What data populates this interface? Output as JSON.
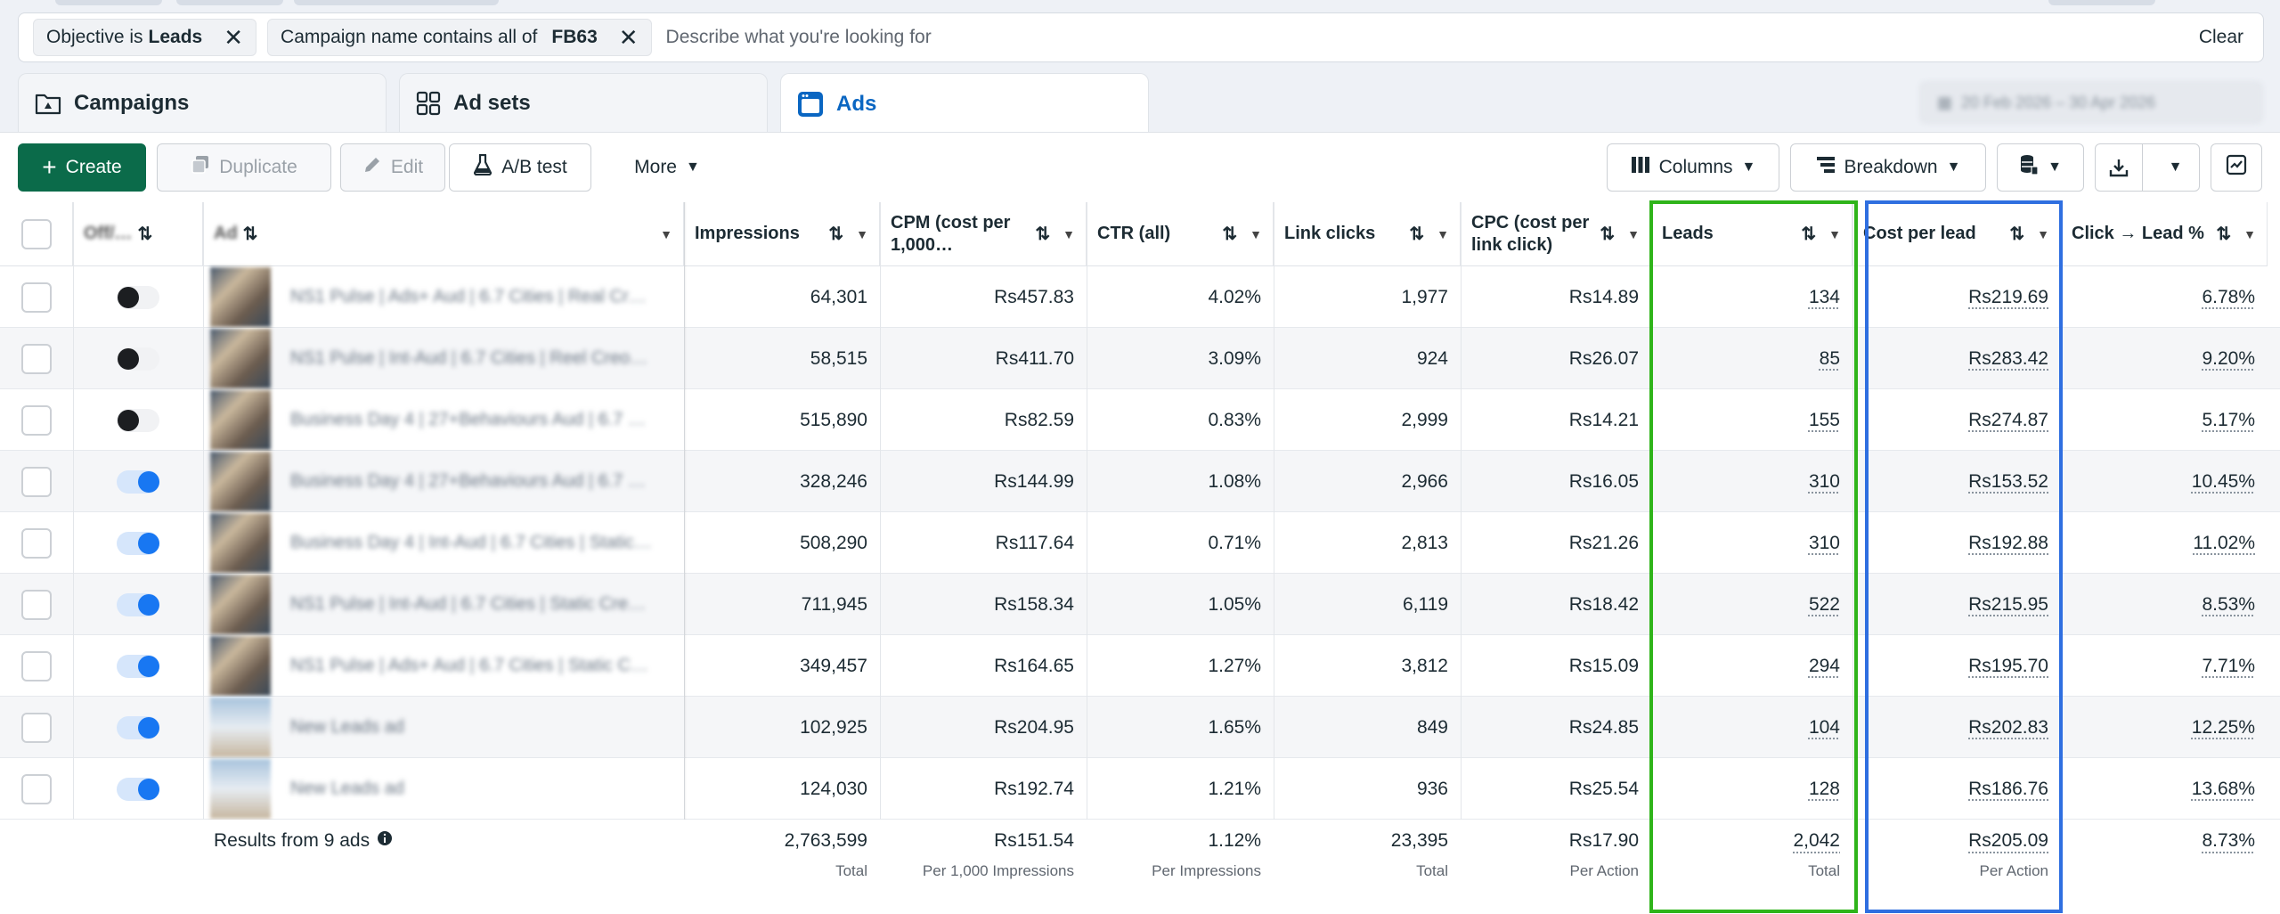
{
  "filters": [
    {
      "prefix": "Objective is",
      "value": "Leads"
    },
    {
      "prefix": "Campaign name contains all of",
      "value": "FB63"
    }
  ],
  "search": {
    "placeholder": "Describe what you're looking for"
  },
  "clear_label": "Clear",
  "tabs": [
    {
      "label": "Campaigns",
      "icon": "campaign-folder-icon"
    },
    {
      "label": "Ad sets",
      "icon": "grid-icon"
    },
    {
      "label": "Ads",
      "icon": "ad-window-icon"
    }
  ],
  "date_range": "20 Feb 2026 – 30 Apr 2026",
  "toolbar": {
    "create": "Create",
    "duplicate": "Duplicate",
    "edit": "Edit",
    "ab_test": "A/B test",
    "more": "More",
    "columns": "Columns",
    "breakdown": "Breakdown"
  },
  "headers": {
    "off_on": "Off/…",
    "ad": "Ad",
    "impressions": "Impressions",
    "cpm": "CPM (cost per 1,000…",
    "ctr": "CTR (all)",
    "link_clicks": "Link clicks",
    "cpc": "CPC (cost per link click)",
    "leads": "Leads",
    "cost_per_lead": "Cost per lead",
    "click_lead": "Click → Lead %"
  },
  "rows": [
    {
      "on": false,
      "thumb": "dark",
      "ad": "NS1 Pulse | Ads+ Aud | 6.7 Cities | Real Cr…",
      "impressions": "64,301",
      "cpm": "Rs457.83",
      "ctr": "4.02%",
      "link_clicks": "1,977",
      "cpc": "Rs14.89",
      "leads": "134",
      "cpl": "Rs219.69",
      "click_lead": "6.78%"
    },
    {
      "on": false,
      "thumb": "dark",
      "ad": "NS1 Pulse | Int-Aud | 6.7 Cities | Reel Creo…",
      "impressions": "58,515",
      "cpm": "Rs411.70",
      "ctr": "3.09%",
      "link_clicks": "924",
      "cpc": "Rs26.07",
      "leads": "85",
      "cpl": "Rs283.42",
      "click_lead": "9.20%"
    },
    {
      "on": false,
      "thumb": "dark",
      "ad": "Business Day 4 | 27+Behaviours Aud | 6.7 …",
      "impressions": "515,890",
      "cpm": "Rs82.59",
      "ctr": "0.83%",
      "link_clicks": "2,999",
      "cpc": "Rs14.21",
      "leads": "155",
      "cpl": "Rs274.87",
      "click_lead": "5.17%"
    },
    {
      "on": true,
      "thumb": "dark",
      "ad": "Business Day 4 | 27+Behaviours Aud | 6.7 …",
      "impressions": "328,246",
      "cpm": "Rs144.99",
      "ctr": "1.08%",
      "link_clicks": "2,966",
      "cpc": "Rs16.05",
      "leads": "310",
      "cpl": "Rs153.52",
      "click_lead": "10.45%"
    },
    {
      "on": true,
      "thumb": "dark",
      "ad": "Business Day 4 | Int-Aud | 6.7 Cities | Static…",
      "impressions": "508,290",
      "cpm": "Rs117.64",
      "ctr": "0.71%",
      "link_clicks": "2,813",
      "cpc": "Rs21.26",
      "leads": "310",
      "cpl": "Rs192.88",
      "click_lead": "11.02%"
    },
    {
      "on": true,
      "thumb": "dark",
      "ad": "NS1 Pulse | Int-Aud | 6.7 Cities | Static Cre…",
      "impressions": "711,945",
      "cpm": "Rs158.34",
      "ctr": "1.05%",
      "link_clicks": "6,119",
      "cpc": "Rs18.42",
      "leads": "522",
      "cpl": "Rs215.95",
      "click_lead": "8.53%"
    },
    {
      "on": true,
      "thumb": "dark",
      "ad": "NS1 Pulse | Ads+ Aud | 6.7 Cities | Static C…",
      "impressions": "349,457",
      "cpm": "Rs164.65",
      "ctr": "1.27%",
      "link_clicks": "3,812",
      "cpc": "Rs15.09",
      "leads": "294",
      "cpl": "Rs195.70",
      "click_lead": "7.71%"
    },
    {
      "on": true,
      "thumb": "sky",
      "ad": "New Leads ad",
      "impressions": "102,925",
      "cpm": "Rs204.95",
      "ctr": "1.65%",
      "link_clicks": "849",
      "cpc": "Rs24.85",
      "leads": "104",
      "cpl": "Rs202.83",
      "click_lead": "12.25%"
    },
    {
      "on": true,
      "thumb": "sky",
      "ad": "New Leads ad",
      "impressions": "124,030",
      "cpm": "Rs192.74",
      "ctr": "1.21%",
      "link_clicks": "936",
      "cpc": "Rs25.54",
      "leads": "128",
      "cpl": "Rs186.76",
      "click_lead": "13.68%"
    }
  ],
  "summary": {
    "results": "Results from 9 ads",
    "impressions": {
      "value": "2,763,599",
      "sub": "Total"
    },
    "cpm": {
      "value": "Rs151.54",
      "sub": "Per 1,000 Impressions"
    },
    "ctr": {
      "value": "1.12%",
      "sub": "Per Impressions"
    },
    "link_clicks": {
      "value": "23,395",
      "sub": "Total"
    },
    "cpc": {
      "value": "Rs17.90",
      "sub": "Per Action"
    },
    "leads": {
      "value": "2,042",
      "sub": "Total"
    },
    "cpl": {
      "value": "Rs205.09",
      "sub": "Per Action"
    },
    "click_lead": {
      "value": "8.73%",
      "sub": ""
    }
  },
  "highlight_colors": {
    "leads": "#2fb41a",
    "cost_per_lead": "#2f6fe0"
  }
}
